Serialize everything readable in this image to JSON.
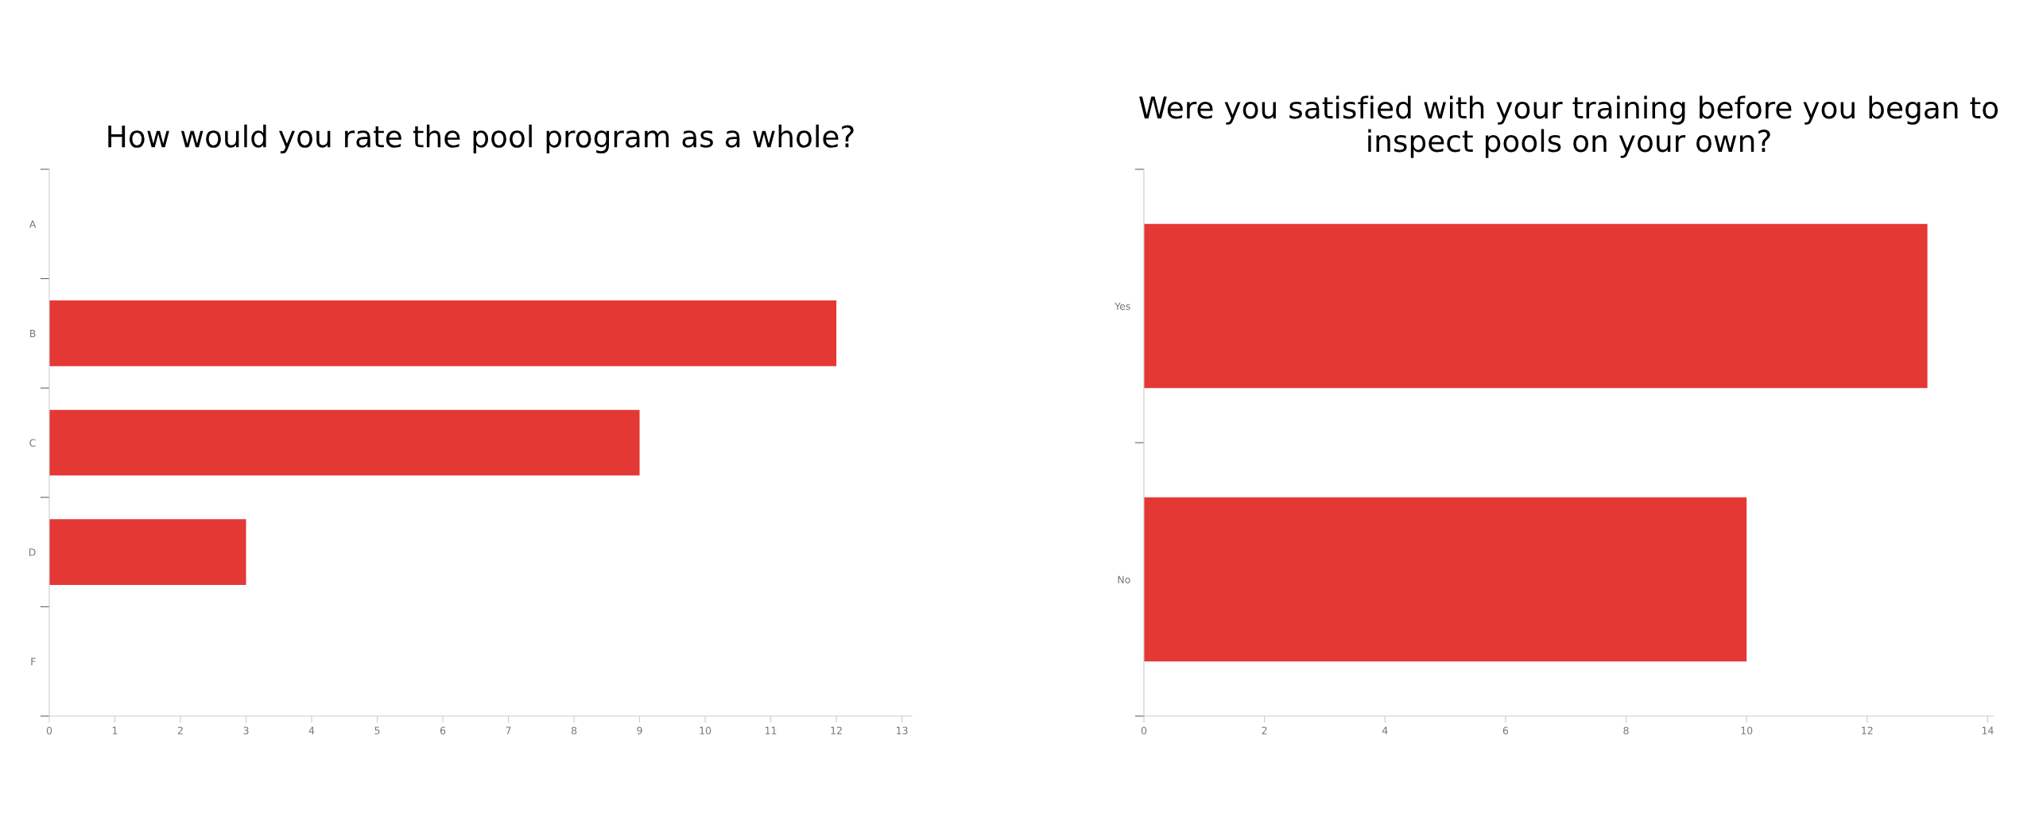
{
  "chart_data": [
    {
      "type": "bar",
      "orientation": "horizontal",
      "title": "How would you rate the pool program as a whole?",
      "categories": [
        "A",
        "B",
        "C",
        "D",
        "F"
      ],
      "values": [
        0,
        12,
        9,
        3,
        0
      ],
      "color": "#e43834",
      "xlim": [
        0,
        13.15
      ],
      "xticks": [
        0,
        1,
        2,
        3,
        4,
        5,
        6,
        7,
        8,
        9,
        10,
        11,
        12,
        13
      ],
      "grid": false
    },
    {
      "type": "bar",
      "orientation": "horizontal",
      "title": "Were you satisfied with your training before you began to inspect pools on your own?",
      "categories": [
        "Yes",
        "No"
      ],
      "values": [
        13,
        10
      ],
      "color": "#e43834",
      "xlim": [
        0,
        14.1
      ],
      "xticks": [
        0,
        2,
        4,
        6,
        8,
        10,
        12,
        14
      ],
      "grid": false
    }
  ]
}
